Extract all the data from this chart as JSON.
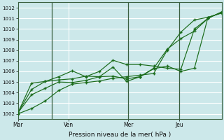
{
  "xlabel": "Pression niveau de la mer( hPa )",
  "bg_color": "#cce8ea",
  "grid_color": "#ffffff",
  "line_color": "#1a6b1a",
  "vline_color": "#3a6040",
  "ylim": [
    1001.5,
    1012.5
  ],
  "yticks": [
    1002,
    1003,
    1004,
    1005,
    1006,
    1007,
    1008,
    1009,
    1010,
    1011,
    1012
  ],
  "xtick_labels": [
    "Mar",
    "Ven",
    "Mer",
    "Jeu"
  ],
  "xtick_positions": [
    0.0,
    3.0,
    6.5,
    9.5
  ],
  "xlim": [
    0,
    12
  ],
  "vline_positions": [
    2.0,
    6.5,
    9.5
  ],
  "series": [
    [
      1002.0,
      1002.5,
      1003.2,
      1004.2,
      1004.8,
      1004.95,
      1005.1,
      1005.35,
      1005.5,
      1005.65,
      1005.8,
      1008.0,
      1009.7,
      1010.85,
      1011.1,
      1011.5
    ],
    [
      1002.1,
      1003.8,
      1004.4,
      1005.0,
      1004.95,
      1005.15,
      1005.5,
      1006.4,
      1005.05,
      1005.5,
      1006.25,
      1006.5,
      1006.0,
      1006.3,
      1011.1,
      1011.5
    ],
    [
      1002.1,
      1004.3,
      1005.05,
      1005.5,
      1006.05,
      1005.5,
      1006.0,
      1007.05,
      1006.65,
      1006.65,
      1006.5,
      1006.3,
      1006.2,
      1010.0,
      1011.0,
      1011.6
    ],
    [
      1002.1,
      1004.9,
      1005.05,
      1005.2,
      1005.3,
      1005.55,
      1005.5,
      1005.55,
      1005.3,
      1005.5,
      1006.3,
      1008.1,
      1009.1,
      1009.8,
      1011.0,
      1011.6
    ]
  ],
  "n_points": 16
}
